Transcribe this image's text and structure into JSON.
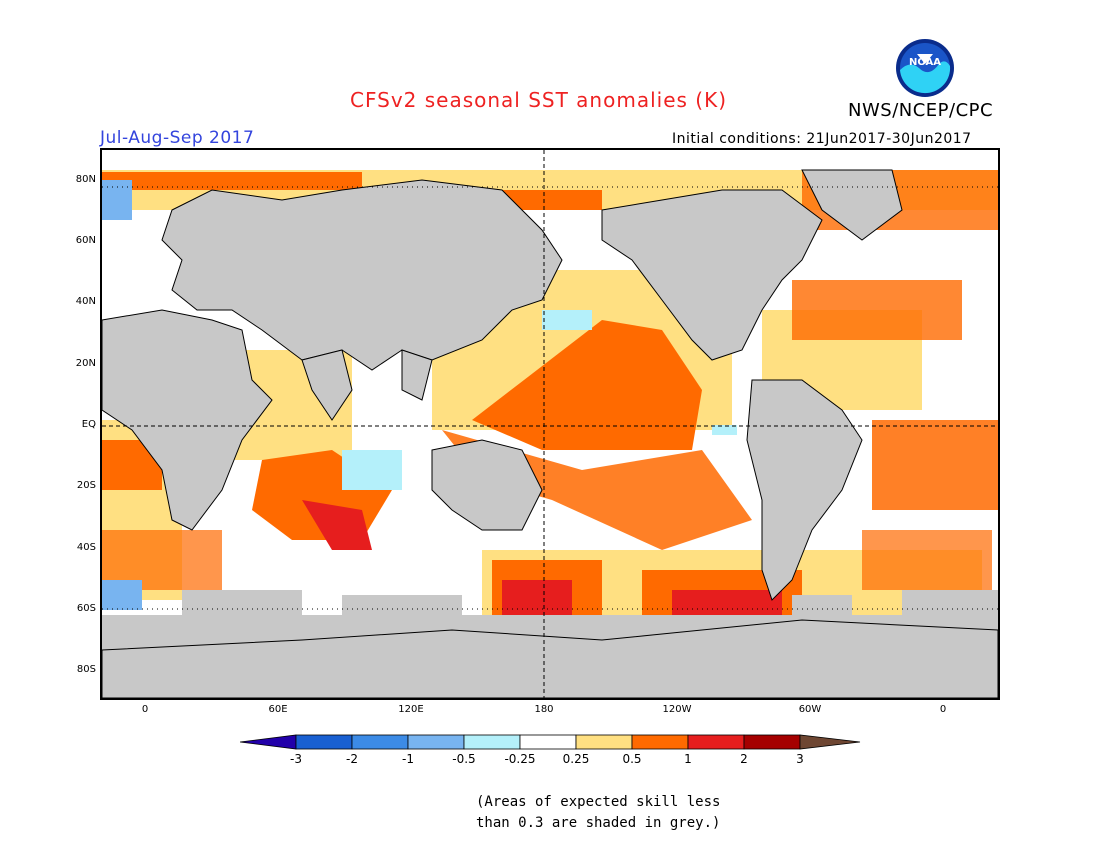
{
  "header": {
    "title": "CFSv2 seasonal SST anomalies (K)",
    "org": "NWS/NCEP/CPC",
    "season": "Jul-Aug-Sep 2017",
    "initial_conditions": "Initial conditions: 21Jun2017-30Jun2017",
    "logo_text": "NOAA"
  },
  "map": {
    "lat_labels": [
      "80N",
      "60N",
      "40N",
      "20N",
      "EQ",
      "20S",
      "40S",
      "60S",
      "80S"
    ],
    "lon_labels": [
      "0",
      "60E",
      "120E",
      "180",
      "120W",
      "60W",
      "0"
    ],
    "land_color": "#c8c8c8",
    "grid_dashed_lines": [
      "EQ",
      "180"
    ]
  },
  "colorbar": {
    "levels": [
      "-3",
      "-2",
      "-1",
      "-0.5",
      "-0.25",
      "0.25",
      "0.5",
      "1",
      "2",
      "3"
    ],
    "colors": [
      "#2200aa",
      "#1960d2",
      "#3c8be6",
      "#78b4f0",
      "#b4f0fa",
      "#ffffff",
      "#ffe082",
      "#ff6a00",
      "#e61e1e",
      "#a50000",
      "#6e4632"
    ]
  },
  "note": {
    "line1": "(Areas of expected skill less",
    "line2": "than 0.3 are shaded in grey.)"
  }
}
